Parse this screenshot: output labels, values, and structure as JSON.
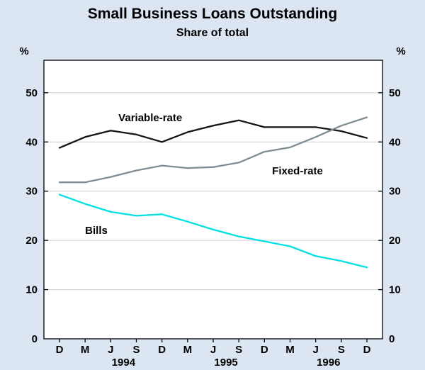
{
  "title": "Small Business Loans Outstanding",
  "subtitle": "Share of total",
  "y_axis_unit_left": "%",
  "y_axis_unit_right": "%",
  "colors": {
    "background": "#dce6f3",
    "plot_background": "#ffffff",
    "grid": "#c9ced8",
    "axis": "#000000",
    "variable_rate_line": "#141414",
    "fixed_rate_line": "#7f8c92",
    "bills_line": "#00e1e1"
  },
  "chart_data": {
    "type": "line",
    "title": "Small Business Loans Outstanding",
    "subtitle": "Share of total",
    "ylabel": "%",
    "ylim": [
      0,
      50
    ],
    "yticks": [
      0,
      10,
      20,
      30,
      40,
      50
    ],
    "grid": true,
    "x_labels": [
      "D",
      "M",
      "J",
      "S",
      "D",
      "M",
      "J",
      "S",
      "D",
      "M",
      "J",
      "S",
      "D"
    ],
    "year_labels": [
      {
        "text": "1994",
        "center_index": 2.5
      },
      {
        "text": "1995",
        "center_index": 6.5
      },
      {
        "text": "1996",
        "center_index": 10.5
      }
    ],
    "series": [
      {
        "name": "Variable-rate",
        "color": "#141414",
        "values": [
          38.8,
          41.0,
          42.3,
          41.5,
          40.0,
          42.0,
          43.3,
          44.4,
          43.0,
          43.0,
          43.0,
          42.2,
          40.8
        ]
      },
      {
        "name": "Fixed-rate",
        "color": "#7f8c92",
        "values": [
          31.8,
          31.8,
          32.9,
          34.2,
          35.2,
          34.7,
          34.9,
          35.8,
          38.0,
          38.9,
          41.0,
          43.3,
          45.0
        ]
      },
      {
        "name": "Bills",
        "color": "#00e1e1",
        "values": [
          29.3,
          27.4,
          25.8,
          25.0,
          25.3,
          23.8,
          22.2,
          20.8,
          19.8,
          18.8,
          16.8,
          15.8,
          14.5
        ]
      }
    ],
    "annotations": [
      {
        "text": "Variable-rate",
        "x_index": 2.3,
        "y_value": 44.2
      },
      {
        "text": "Fixed-rate",
        "x_index": 8.3,
        "y_value": 33.4
      },
      {
        "text": "Bills",
        "x_index": 1.0,
        "y_value": 21.3
      }
    ]
  }
}
